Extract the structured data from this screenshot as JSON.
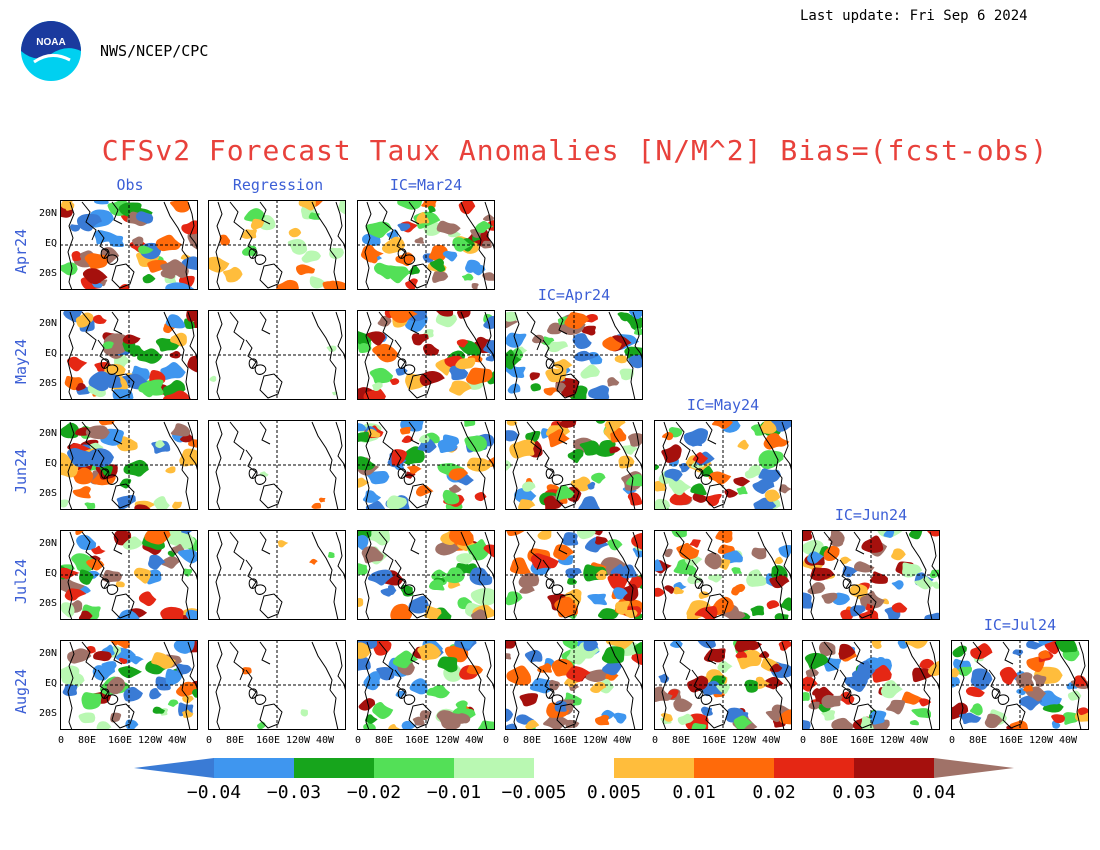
{
  "header": {
    "org": "NWS/NCEP/CPC",
    "last_update": "Last update: Fri Sep 6 2024",
    "logo_text": "NOAA",
    "title": "CFSv2 Forecast Taux Anomalies [N/M^2] Bias=(fcst-obs)"
  },
  "columns": [
    "Obs",
    "Regression",
    "IC=Mar24",
    "IC=Apr24",
    "IC=May24",
    "IC=Jun24",
    "IC=Jul24"
  ],
  "rows": [
    "Apr24",
    "May24",
    "Jun24",
    "Jul24",
    "Aug24"
  ],
  "y_ticks": [
    "20N",
    "EQ",
    "20S"
  ],
  "x_ticks": [
    "0",
    "80E",
    "160E",
    "120W",
    "40W"
  ],
  "colorbar": {
    "labels": [
      "-0.04",
      "-0.03",
      "-0.02",
      "-0.01",
      "-0.005",
      "0.005",
      "0.01",
      "0.02",
      "0.03",
      "0.04"
    ],
    "colors": [
      "#3a7bd5",
      "#3f96ef",
      "#17a51c",
      "#53e057",
      "#b9f8b2",
      "#ffffff",
      "#ffbd3c",
      "#ff6a0a",
      "#e52714",
      "#a5100d",
      "#a07268"
    ]
  }
}
